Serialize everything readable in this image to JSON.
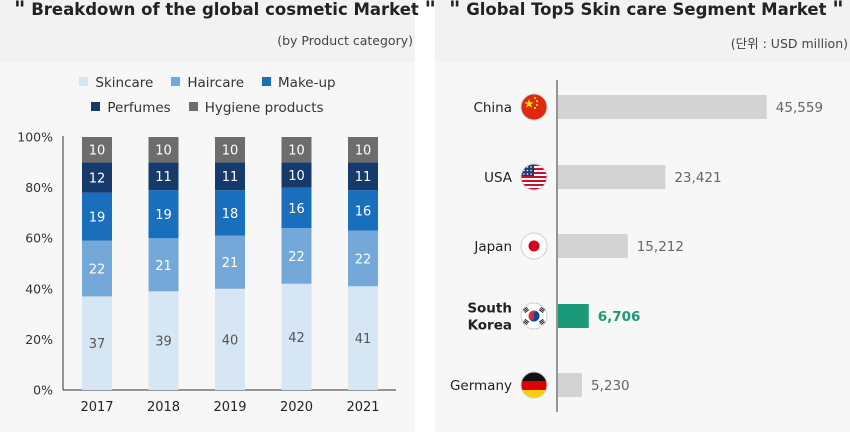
{
  "left": {
    "title": "Breakdown of the global cosmetic Market",
    "quote_open": "\"",
    "quote_close": "\"",
    "subtitle": "(by Product category)"
  },
  "right": {
    "title": "Global Top5 Skin care Segment Market",
    "quote_open": "\"",
    "quote_close": "\"",
    "subtitle": "(단위 : USD million)"
  },
  "legend": [
    {
      "name": "Skincare",
      "color": "#d6e6f5"
    },
    {
      "name": "Haircare",
      "color": "#74a8d8"
    },
    {
      "name": "Make-up",
      "color": "#1a6fbc"
    },
    {
      "name": "Perfumes",
      "color": "#173a6c"
    },
    {
      "name": "Hygiene products",
      "color": "#6d6d6d"
    }
  ],
  "chart_data": [
    {
      "type": "bar",
      "stacked": true,
      "categories": [
        "2017",
        "2018",
        "2019",
        "2020",
        "2021"
      ],
      "series": [
        {
          "name": "Skincare",
          "values": [
            37,
            39,
            40,
            42,
            41
          ],
          "color": "#d6e6f5",
          "label_color": "#555555"
        },
        {
          "name": "Haircare",
          "values": [
            22,
            21,
            21,
            22,
            22
          ],
          "color": "#74a8d8",
          "label_color": "#ffffff"
        },
        {
          "name": "Make-up",
          "values": [
            19,
            19,
            18,
            16,
            16
          ],
          "color": "#1a6fbc",
          "label_color": "#ffffff"
        },
        {
          "name": "Perfumes",
          "values": [
            12,
            11,
            11,
            10,
            11
          ],
          "color": "#173a6c",
          "label_color": "#ffffff"
        },
        {
          "name": "Hygiene products",
          "values": [
            10,
            10,
            10,
            10,
            10
          ],
          "color": "#6d6d6d",
          "label_color": "#ffffff"
        }
      ],
      "y_ticks": [
        "0%",
        "20%",
        "40%",
        "60%",
        "80%",
        "100%"
      ],
      "ylim": [
        0,
        100
      ],
      "legend_position": "top",
      "grid": false
    },
    {
      "type": "bar",
      "orientation": "horizontal",
      "categories": [
        "China",
        "USA",
        "Japan",
        "South Korea",
        "Germany"
      ],
      "category_lines": [
        [
          "China"
        ],
        [
          "USA"
        ],
        [
          "Japan"
        ],
        [
          "South",
          "Korea"
        ],
        [
          "Germany"
        ]
      ],
      "values": [
        45559,
        23421,
        15212,
        6706,
        5230
      ],
      "value_labels": [
        "45,559",
        "23,421",
        "15,212",
        "6,706",
        "5,230"
      ],
      "flag_icons": [
        "china-flag-icon",
        "usa-flag-icon",
        "japan-flag-icon",
        "south-korea-flag-icon",
        "germany-flag-icon"
      ],
      "highlight": "South Korea",
      "bar_color": "#d3d3d3",
      "highlight_color": "#1a9a78",
      "label_color": "#666666",
      "xlim": [
        0,
        48000
      ],
      "grid": false
    }
  ]
}
